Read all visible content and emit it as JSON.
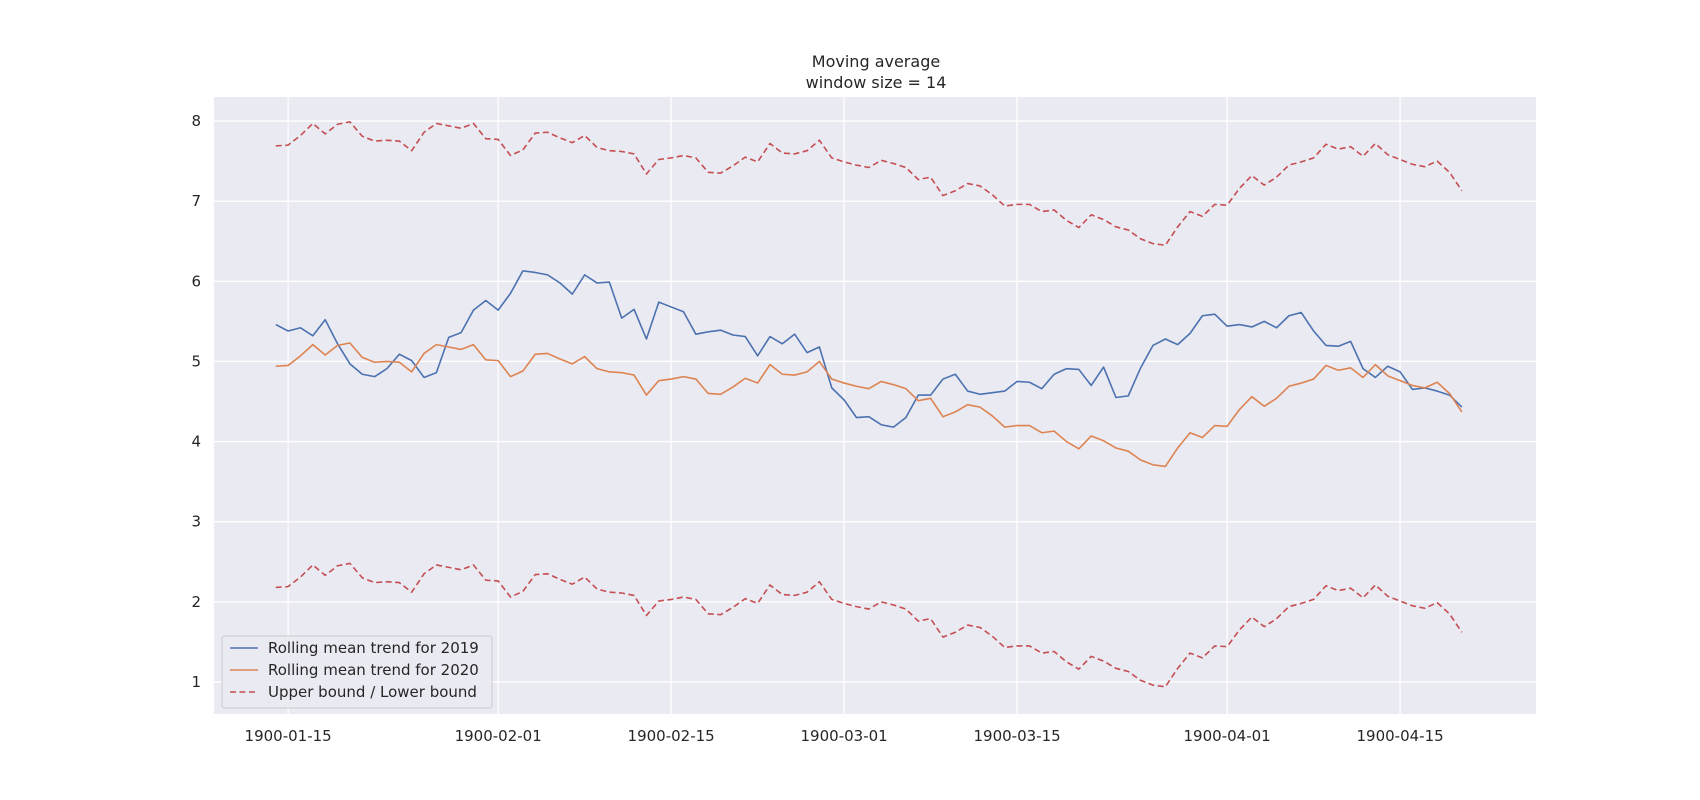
{
  "chart_data": {
    "type": "line",
    "title": "Moving average",
    "subtitle": "window size = 14",
    "xlabel": "",
    "ylabel": "",
    "x_start": "1900-01-14",
    "x_end": "1900-04-20",
    "xlim": [
      "1900-01-09",
      "1900-04-26"
    ],
    "ylim": [
      0.6,
      8.3
    ],
    "x_ticks": [
      "1900-01-15",
      "1900-02-01",
      "1900-02-15",
      "1900-03-01",
      "1900-03-15",
      "1900-04-01",
      "1900-04-15"
    ],
    "y_ticks": [
      1,
      2,
      3,
      4,
      5,
      6,
      7,
      8
    ],
    "grid": true,
    "background": "#eaeaf2",
    "legend_position": "lower-left",
    "series": [
      {
        "name": "Rolling mean trend for 2019",
        "color": "#4c72b0",
        "style": "solid",
        "values": [
          5.46,
          5.38,
          5.42,
          5.32,
          5.52,
          5.22,
          4.97,
          4.84,
          4.81,
          4.91,
          5.09,
          5.01,
          4.8,
          4.86,
          5.3,
          5.36,
          5.64,
          5.76,
          5.64,
          5.85,
          6.13,
          6.11,
          6.08,
          5.98,
          5.84,
          6.08,
          5.98,
          5.99,
          5.54,
          5.65,
          5.28,
          5.74,
          5.68,
          5.62,
          5.34,
          5.37,
          5.39,
          5.33,
          5.31,
          5.07,
          5.31,
          5.22,
          5.34,
          5.11,
          5.18,
          4.67,
          4.52,
          4.3,
          4.31,
          4.21,
          4.18,
          4.3,
          4.58,
          4.58,
          4.78,
          4.84,
          4.63,
          4.59,
          4.61,
          4.63,
          4.75,
          4.74,
          4.66,
          4.84,
          4.91,
          4.9,
          4.7,
          4.93,
          4.55,
          4.57,
          4.92,
          5.2,
          5.28,
          5.21,
          5.35,
          5.57,
          5.59,
          5.44,
          5.46,
          5.43,
          5.5,
          5.42,
          5.57,
          5.61,
          5.38,
          5.2,
          5.19,
          5.25,
          4.91,
          4.8,
          4.94,
          4.87,
          4.65,
          4.67,
          4.63,
          4.58,
          4.43
        ]
      },
      {
        "name": "Rolling mean trend for 2020",
        "color": "#dd8452",
        "style": "solid",
        "values": [
          4.94,
          4.95,
          5.07,
          5.21,
          5.08,
          5.2,
          5.23,
          5.05,
          4.99,
          5.0,
          4.99,
          4.87,
          5.1,
          5.21,
          5.18,
          5.15,
          5.21,
          5.02,
          5.01,
          4.81,
          4.88,
          5.09,
          5.1,
          5.03,
          4.97,
          5.06,
          4.91,
          4.87,
          4.86,
          4.83,
          4.58,
          4.76,
          4.78,
          4.81,
          4.78,
          4.6,
          4.59,
          4.68,
          4.79,
          4.73,
          4.96,
          4.84,
          4.83,
          4.87,
          5.0,
          4.78,
          4.73,
          4.69,
          4.66,
          4.75,
          4.71,
          4.66,
          4.51,
          4.54,
          4.31,
          4.37,
          4.46,
          4.43,
          4.32,
          4.18,
          4.2,
          4.2,
          4.11,
          4.13,
          4.0,
          3.91,
          4.07,
          4.01,
          3.92,
          3.88,
          3.77,
          3.71,
          3.69,
          3.92,
          4.11,
          4.05,
          4.2,
          4.19,
          4.4,
          4.56,
          4.44,
          4.54,
          4.69,
          4.73,
          4.78,
          4.95,
          4.89,
          4.92,
          4.8,
          4.96,
          4.82,
          4.76,
          4.7,
          4.67,
          4.74,
          4.6,
          4.37
        ]
      },
      {
        "name": "Upper bound / Lower bound",
        "color": "#c44e52",
        "style": "dashed",
        "upper": [
          7.69,
          7.7,
          7.82,
          7.97,
          7.84,
          7.96,
          7.99,
          7.81,
          7.75,
          7.76,
          7.75,
          7.63,
          7.86,
          7.97,
          7.94,
          7.91,
          7.97,
          7.78,
          7.77,
          7.57,
          7.64,
          7.85,
          7.86,
          7.79,
          7.73,
          7.82,
          7.67,
          7.63,
          7.62,
          7.59,
          7.34,
          7.52,
          7.54,
          7.57,
          7.54,
          7.36,
          7.35,
          7.44,
          7.55,
          7.49,
          7.72,
          7.6,
          7.59,
          7.63,
          7.76,
          7.54,
          7.49,
          7.45,
          7.42,
          7.51,
          7.47,
          7.42,
          7.27,
          7.3,
          7.07,
          7.13,
          7.22,
          7.19,
          7.08,
          6.94,
          6.96,
          6.96,
          6.87,
          6.89,
          6.76,
          6.67,
          6.83,
          6.77,
          6.68,
          6.64,
          6.53,
          6.47,
          6.45,
          6.68,
          6.87,
          6.81,
          6.96,
          6.95,
          7.16,
          7.32,
          7.2,
          7.3,
          7.45,
          7.49,
          7.54,
          7.71,
          7.65,
          7.68,
          7.56,
          7.72,
          7.58,
          7.52,
          7.46,
          7.43,
          7.5,
          7.36,
          7.13
        ],
        "lower": [
          2.18,
          2.19,
          2.31,
          2.46,
          2.33,
          2.45,
          2.48,
          2.3,
          2.24,
          2.25,
          2.24,
          2.12,
          2.35,
          2.46,
          2.43,
          2.4,
          2.46,
          2.27,
          2.26,
          2.06,
          2.13,
          2.34,
          2.35,
          2.28,
          2.22,
          2.31,
          2.16,
          2.12,
          2.11,
          2.08,
          1.83,
          2.01,
          2.03,
          2.06,
          2.03,
          1.85,
          1.84,
          1.93,
          2.04,
          1.98,
          2.21,
          2.09,
          2.08,
          2.12,
          2.25,
          2.03,
          1.98,
          1.94,
          1.91,
          2.0,
          1.96,
          1.91,
          1.76,
          1.79,
          1.56,
          1.62,
          1.71,
          1.68,
          1.57,
          1.43,
          1.45,
          1.45,
          1.36,
          1.38,
          1.25,
          1.16,
          1.32,
          1.26,
          1.17,
          1.13,
          1.02,
          0.96,
          0.94,
          1.17,
          1.36,
          1.3,
          1.45,
          1.44,
          1.65,
          1.81,
          1.69,
          1.79,
          1.94,
          1.98,
          2.03,
          2.2,
          2.14,
          2.17,
          2.05,
          2.21,
          2.07,
          2.01,
          1.95,
          1.92,
          1.99,
          1.85,
          1.62
        ]
      }
    ]
  }
}
